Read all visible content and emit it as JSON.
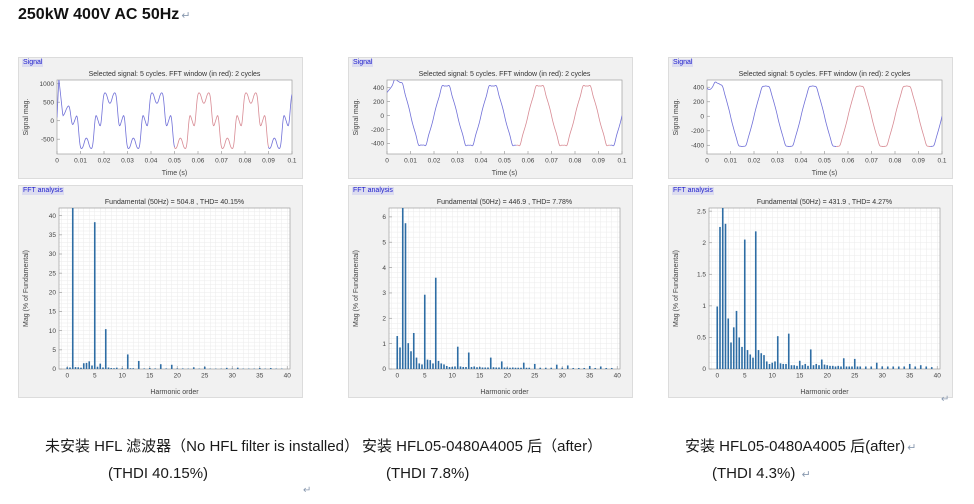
{
  "page": {
    "title": "250kW 400V AC 50Hz",
    "paragraph_mark": "↵"
  },
  "panels": {
    "signal_label": "Signal",
    "fft_label": "FFT analysis"
  },
  "colors": {
    "bar": "#2e6da4",
    "signal_blue": "#7070d8",
    "signal_red": "#d88b94",
    "panel_label_blue": "#1d1dcc",
    "axis_border": "#9e9e9e",
    "grid": "#ebebeb",
    "tick_text": "#444444",
    "title_text": "#333333"
  },
  "columns": [
    {
      "caption_line1": "未安装 HFL 滤波器（No HFL filter is installed）",
      "caption_line2": "(THDI 40.15%)",
      "line1_mark": "",
      "line2_mark": ""
    },
    {
      "caption_line1": "安装 HFL05-0480A4005 后（after）",
      "caption_line2": "(THDI 7.8%)",
      "line1_mark": "",
      "line2_mark": ""
    },
    {
      "caption_line1": "安装 HFL05-0480A4005 后(after)",
      "caption_line2": "(THDI 4.3%)",
      "line1_mark": "↵",
      "line2_mark": "↵"
    }
  ],
  "chart_data": [
    {
      "type": "line",
      "panel": "Signal",
      "column": 1,
      "title": "Selected signal: 5 cycles. FFT window (in red): 2 cycles",
      "xlabel": "Time (s)",
      "ylabel": "Signal mag.",
      "xlim": [
        0,
        0.1
      ],
      "ylim": [
        -900,
        1100
      ],
      "xticks": [
        0,
        0.01,
        0.02,
        0.03,
        0.04,
        0.05,
        0.06,
        0.07,
        0.08,
        0.09,
        0.1
      ],
      "yticks": [
        -500,
        0,
        500,
        1000
      ],
      "grid": false,
      "fundamental_hz": 50,
      "cycles": 5,
      "fft_window_cycles": 2,
      "fft_window_t": [
        0.05,
        0.09
      ],
      "synth": {
        "peak": 670,
        "t0": 0.0225,
        "harmonics": [
          [
            1,
            1.0,
            1
          ],
          [
            5,
            0.383,
            -1
          ],
          [
            7,
            0.104,
            1
          ],
          [
            11,
            0.038,
            -1
          ],
          [
            13,
            0.021,
            1
          ]
        ],
        "envelope": {
          "end": 0.009,
          "min": 0.12
        },
        "spike": {
          "t_start": 0,
          "t_peak": 0.0008,
          "t_end": 0.0025,
          "peak": 1050
        }
      }
    },
    {
      "type": "bar",
      "panel": "FFT analysis",
      "column": 1,
      "title": "Fundamental (50Hz) = 504.8 , THD= 40.15%",
      "fundamental_value": 504.8,
      "thd_percent": 40.15,
      "xlabel": "Harmonic order",
      "ylabel": "Mag (% of Fundamental)",
      "xlim": [
        -1.5,
        40.5
      ],
      "ylim": [
        0,
        42
      ],
      "xticks": [
        0,
        5,
        10,
        15,
        20,
        25,
        30,
        35,
        40
      ],
      "yticks": [
        0,
        5,
        10,
        15,
        20,
        25,
        30,
        35,
        40
      ],
      "grid": true,
      "x_grid_step": 1,
      "y_grid_step": 1,
      "bars": [
        [
          0,
          0.45
        ],
        [
          0.5,
          0.4
        ],
        [
          1,
          42
        ],
        [
          1.5,
          0.5
        ],
        [
          2,
          0.45
        ],
        [
          2.5,
          0.35
        ],
        [
          3,
          1.5
        ],
        [
          3.5,
          1.6
        ],
        [
          4,
          2.0
        ],
        [
          4.5,
          0.9
        ],
        [
          5,
          38.3
        ],
        [
          5.5,
          0.6
        ],
        [
          6,
          1.4
        ],
        [
          6.5,
          0.4
        ],
        [
          7,
          10.4
        ],
        [
          7.5,
          0.4
        ],
        [
          8,
          0.25
        ],
        [
          8.5,
          0.2
        ],
        [
          9,
          0.35
        ],
        [
          10,
          0.2
        ],
        [
          11,
          3.8
        ],
        [
          11.5,
          0.2
        ],
        [
          12,
          0.2
        ],
        [
          13,
          2.1
        ],
        [
          14,
          0.15
        ],
        [
          15,
          0.25
        ],
        [
          16,
          0.15
        ],
        [
          17,
          1.25
        ],
        [
          18,
          0.15
        ],
        [
          19,
          1.1
        ],
        [
          20,
          0.15
        ],
        [
          21,
          0.15
        ],
        [
          22,
          0.1
        ],
        [
          23,
          0.45
        ],
        [
          24,
          0.1
        ],
        [
          25,
          0.6
        ],
        [
          26,
          0.1
        ],
        [
          27,
          0.1
        ],
        [
          28,
          0.1
        ],
        [
          29,
          0.3
        ],
        [
          30,
          0.1
        ],
        [
          31,
          0.35
        ],
        [
          32,
          0.1
        ],
        [
          33,
          0.1
        ],
        [
          34,
          0.1
        ],
        [
          35,
          0.25
        ],
        [
          36,
          0.1
        ],
        [
          37,
          0.25
        ],
        [
          38,
          0.1
        ],
        [
          39,
          0.1
        ]
      ]
    },
    {
      "type": "line",
      "panel": "Signal",
      "column": 2,
      "title": "Selected signal: 5 cycles. FFT window (in red): 2 cycles",
      "xlabel": "Time (s)",
      "ylabel": "Signal mag.",
      "xlim": [
        0,
        0.1
      ],
      "ylim": [
        -550,
        510
      ],
      "xticks": [
        0,
        0.01,
        0.02,
        0.03,
        0.04,
        0.05,
        0.06,
        0.07,
        0.08,
        0.09,
        0.1
      ],
      "yticks": [
        -400,
        -200,
        0,
        200,
        400
      ],
      "grid": false,
      "fundamental_hz": 50,
      "cycles": 5,
      "fft_window_cycles": 2,
      "fft_window_t": [
        0.055,
        0.095
      ],
      "synth": {
        "peak": 447,
        "t0": 0.005,
        "harmonics": [
          [
            1,
            1.0,
            1
          ],
          [
            5,
            0.029,
            -1
          ],
          [
            7,
            0.036,
            -1
          ],
          [
            11,
            0.009,
            1
          ],
          [
            13,
            0.0065,
            1
          ]
        ],
        "transient": {
          "amp": 330,
          "tau": 0.003
        }
      }
    },
    {
      "type": "bar",
      "panel": "FFT analysis",
      "column": 2,
      "title": "Fundamental (50Hz) = 446.9 , THD= 7.78%",
      "fundamental_value": 446.9,
      "thd_percent": 7.78,
      "xlabel": "Harmonic order",
      "ylabel": "Mag (% of Fundamental)",
      "xlim": [
        -1.5,
        40.5
      ],
      "ylim": [
        0,
        6.35
      ],
      "xticks": [
        0,
        5,
        10,
        15,
        20,
        25,
        30,
        35,
        40
      ],
      "yticks": [
        0,
        1,
        2,
        3,
        4,
        5,
        6
      ],
      "grid": true,
      "x_grid_step": 1,
      "y_grid_step": 0.2,
      "bars": [
        [
          0,
          1.3
        ],
        [
          0.5,
          0.85
        ],
        [
          1,
          6.35
        ],
        [
          1.5,
          5.75
        ],
        [
          2,
          1.02
        ],
        [
          2.5,
          0.7
        ],
        [
          3,
          1.42
        ],
        [
          3.5,
          0.45
        ],
        [
          4,
          0.22
        ],
        [
          4.5,
          0.18
        ],
        [
          5,
          2.93
        ],
        [
          5.5,
          0.37
        ],
        [
          6,
          0.35
        ],
        [
          6.5,
          0.22
        ],
        [
          7,
          3.6
        ],
        [
          7.5,
          0.32
        ],
        [
          8,
          0.22
        ],
        [
          8.5,
          0.18
        ],
        [
          9,
          0.12
        ],
        [
          9.5,
          0.08
        ],
        [
          10,
          0.08
        ],
        [
          10.5,
          0.1
        ],
        [
          11,
          0.88
        ],
        [
          11.5,
          0.1
        ],
        [
          12,
          0.08
        ],
        [
          12.5,
          0.08
        ],
        [
          13,
          0.65
        ],
        [
          13.5,
          0.08
        ],
        [
          14,
          0.1
        ],
        [
          14.5,
          0.07
        ],
        [
          15,
          0.08
        ],
        [
          15.5,
          0.06
        ],
        [
          16,
          0.06
        ],
        [
          16.5,
          0.06
        ],
        [
          17,
          0.45
        ],
        [
          17.5,
          0.07
        ],
        [
          18,
          0.06
        ],
        [
          18.5,
          0.06
        ],
        [
          19,
          0.3
        ],
        [
          19.5,
          0.06
        ],
        [
          20,
          0.06
        ],
        [
          20.5,
          0.05
        ],
        [
          21,
          0.06
        ],
        [
          21.5,
          0.05
        ],
        [
          22,
          0.05
        ],
        [
          22.5,
          0.05
        ],
        [
          23,
          0.25
        ],
        [
          23.5,
          0.05
        ],
        [
          24,
          0.05
        ],
        [
          25,
          0.2
        ],
        [
          26,
          0.05
        ],
        [
          27,
          0.05
        ],
        [
          28,
          0.05
        ],
        [
          29,
          0.17
        ],
        [
          30,
          0.05
        ],
        [
          31,
          0.14
        ],
        [
          32,
          0.04
        ],
        [
          33,
          0.04
        ],
        [
          34,
          0.04
        ],
        [
          35,
          0.12
        ],
        [
          36,
          0.04
        ],
        [
          37,
          0.1
        ],
        [
          38,
          0.04
        ],
        [
          39,
          0.04
        ]
      ]
    },
    {
      "type": "line",
      "panel": "Signal",
      "column": 3,
      "title": "Selected signal: 5 cycles. FFT window (in red): 2 cycles",
      "xlabel": "Time (s)",
      "ylabel": "Signal mag.",
      "xlim": [
        0,
        0.1
      ],
      "ylim": [
        -520,
        500
      ],
      "xticks": [
        0,
        0.01,
        0.02,
        0.03,
        0.04,
        0.05,
        0.06,
        0.07,
        0.08,
        0.09,
        0.1
      ],
      "yticks": [
        -400,
        -200,
        0,
        200,
        400
      ],
      "grid": false,
      "fundamental_hz": 50,
      "cycles": 5,
      "fft_window_cycles": 2,
      "fft_window_t": [
        0.055,
        0.095
      ],
      "synth": {
        "peak": 432,
        "t0": 0.005,
        "harmonics": [
          [
            1,
            1.0,
            1
          ],
          [
            5,
            0.0205,
            -1
          ],
          [
            7,
            0.0218,
            -1
          ],
          [
            11,
            0.0052,
            1
          ],
          [
            13,
            0.0056,
            1
          ]
        ],
        "transient": {
          "amp": 390,
          "tau": 0.002
        }
      }
    },
    {
      "type": "bar",
      "panel": "FFT analysis",
      "column": 3,
      "title": "Fundamental (50Hz) = 431.9 , THD= 4.27%",
      "fundamental_value": 431.9,
      "thd_percent": 4.27,
      "xlabel": "Harmonic order",
      "ylabel": "Mag (% of Fundamental)",
      "xlim": [
        -1.5,
        40.5
      ],
      "ylim": [
        0,
        2.55
      ],
      "xticks": [
        0,
        5,
        10,
        15,
        20,
        25,
        30,
        35,
        40
      ],
      "yticks": [
        0,
        0.5,
        1,
        1.5,
        2,
        2.5
      ],
      "grid": true,
      "x_grid_step": 1,
      "y_grid_step": 0.1,
      "bars": [
        [
          0,
          0.99
        ],
        [
          0.5,
          2.25
        ],
        [
          1,
          2.55
        ],
        [
          1.5,
          2.3
        ],
        [
          2,
          0.8
        ],
        [
          2.5,
          0.42
        ],
        [
          3,
          0.66
        ],
        [
          3.5,
          0.92
        ],
        [
          4,
          0.5
        ],
        [
          4.5,
          0.35
        ],
        [
          5,
          2.05
        ],
        [
          5.5,
          0.3
        ],
        [
          6,
          0.23
        ],
        [
          6.5,
          0.18
        ],
        [
          7,
          2.18
        ],
        [
          7.5,
          0.3
        ],
        [
          8,
          0.25
        ],
        [
          8.5,
          0.22
        ],
        [
          9,
          0.12
        ],
        [
          9.5,
          0.08
        ],
        [
          10,
          0.1
        ],
        [
          10.5,
          0.12
        ],
        [
          11,
          0.52
        ],
        [
          11.5,
          0.09
        ],
        [
          12,
          0.08
        ],
        [
          12.5,
          0.08
        ],
        [
          13,
          0.56
        ],
        [
          13.5,
          0.06
        ],
        [
          14,
          0.06
        ],
        [
          14.5,
          0.05
        ],
        [
          15,
          0.13
        ],
        [
          15.5,
          0.06
        ],
        [
          16,
          0.08
        ],
        [
          16.5,
          0.05
        ],
        [
          17,
          0.31
        ],
        [
          17.5,
          0.06
        ],
        [
          18,
          0.08
        ],
        [
          18.5,
          0.06
        ],
        [
          19,
          0.15
        ],
        [
          19.5,
          0.07
        ],
        [
          20,
          0.06
        ],
        [
          20.5,
          0.05
        ],
        [
          21,
          0.05
        ],
        [
          21.5,
          0.04
        ],
        [
          22,
          0.05
        ],
        [
          22.5,
          0.04
        ],
        [
          23,
          0.17
        ],
        [
          23.5,
          0.04
        ],
        [
          24,
          0.04
        ],
        [
          24.5,
          0.04
        ],
        [
          25,
          0.16
        ],
        [
          25.5,
          0.04
        ],
        [
          26,
          0.04
        ],
        [
          27,
          0.04
        ],
        [
          28,
          0.04
        ],
        [
          29,
          0.1
        ],
        [
          30,
          0.04
        ],
        [
          31,
          0.04
        ],
        [
          32,
          0.04
        ],
        [
          33,
          0.04
        ],
        [
          34,
          0.04
        ],
        [
          35,
          0.08
        ],
        [
          36,
          0.04
        ],
        [
          37,
          0.06
        ],
        [
          38,
          0.04
        ],
        [
          39,
          0.03
        ]
      ]
    }
  ]
}
